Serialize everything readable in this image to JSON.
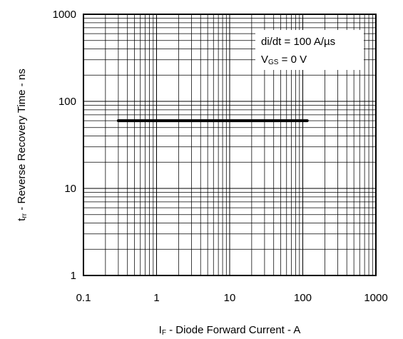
{
  "chart_data": {
    "type": "line",
    "x_scale": "log",
    "y_scale": "log",
    "xlim": [
      0.1,
      1000
    ],
    "ylim": [
      1,
      1000
    ],
    "grid": true,
    "x_ticks": [
      0.1,
      1,
      10,
      100,
      1000
    ],
    "x_tick_labels": [
      "0.1",
      "1",
      "10",
      "100",
      "1000"
    ],
    "y_ticks": [
      1,
      10,
      100,
      1000
    ],
    "y_tick_labels": [
      "1",
      "10",
      "100",
      "1000"
    ],
    "xlabel": {
      "prefix": "I",
      "subscript": "F",
      "suffix": " - Diode Forward Current - A"
    },
    "ylabel": {
      "prefix": "t",
      "subscript": "rr",
      "suffix": " - Reverse Recovery Time - ns"
    },
    "annotations": {
      "line1": "di/dt = 100 A/µs",
      "line2_prefix": "V",
      "line2_subscript": "GS",
      "line2_suffix": " = 0 V"
    },
    "series": [
      {
        "x": [
          0.3,
          115
        ],
        "y": [
          60,
          60
        ]
      }
    ],
    "series_color": "#000000"
  }
}
